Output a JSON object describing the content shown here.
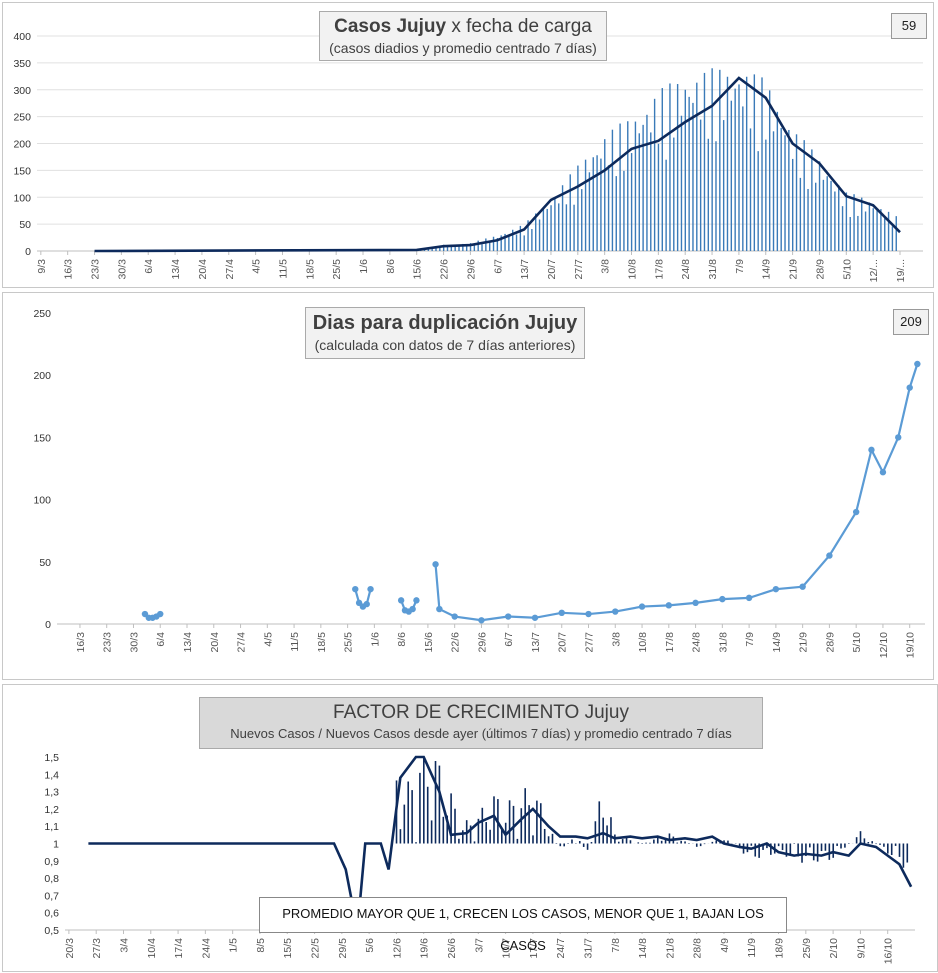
{
  "chart_data": [
    {
      "type": "bar",
      "title": "Casos Jujuy",
      "title_suffix": "x fecha de carga",
      "subtitle": "(casos diadios y promedio  centrado 7 días)",
      "badge": "59",
      "ylim": [
        0,
        400
      ],
      "yticks": [
        "400",
        "350",
        "300",
        "250",
        "200",
        "150",
        "100",
        "50",
        "0"
      ],
      "xtick_labels": [
        "9/3",
        "16/3",
        "23/3",
        "30/3",
        "6/4",
        "13/4",
        "20/4",
        "27/4",
        "4/5",
        "11/5",
        "18/5",
        "25/5",
        "1/6",
        "8/6",
        "15/6",
        "22/6",
        "29/6",
        "6/7",
        "13/7",
        "20/7",
        "27/7",
        "3/8",
        "10/8",
        "17/8",
        "24/8",
        "31/8",
        "7/9",
        "14/9",
        "21/9",
        "28/9",
        "5/10",
        "12/...",
        "19/..."
      ],
      "colors": {
        "bars": "#3a7ab8",
        "line": "#0d2a5c"
      },
      "series": [
        {
          "kind": "bar",
          "x": [
            "15/6",
            "22/6",
            "29/6",
            "6/7",
            "13/7",
            "20/7",
            "27/7",
            "3/8",
            "10/8",
            "17/8",
            "24/8",
            "31/8",
            "7/9",
            "14/9",
            "21/9",
            "28/9",
            "5/10",
            "12/10",
            "19/10"
          ],
          "values": [
            2,
            12,
            15,
            30,
            50,
            100,
            160,
            220,
            250,
            300,
            330,
            340,
            345,
            320,
            230,
            175,
            110,
            95,
            60
          ]
        },
        {
          "kind": "line",
          "x": [
            "15/6",
            "22/6",
            "29/6",
            "6/7",
            "13/7",
            "20/7",
            "27/7",
            "3/8",
            "10/8",
            "17/8",
            "24/8",
            "31/8",
            "7/9",
            "14/9",
            "21/9",
            "28/9",
            "5/10",
            "12/10",
            "19/10"
          ],
          "values": [
            2,
            9,
            11,
            20,
            40,
            95,
            120,
            150,
            190,
            205,
            240,
            270,
            322,
            285,
            200,
            163,
            102,
            85,
            35
          ]
        }
      ]
    },
    {
      "type": "line",
      "title": "Dias para duplicación Jujuy",
      "subtitle": "(calculada con datos de 7 días anteriores)",
      "badge": "209",
      "ylim": [
        0,
        250
      ],
      "yticks": [
        "250",
        "200",
        "150",
        "100",
        "50",
        "0"
      ],
      "xtick_labels": [
        "16/3",
        "23/3",
        "30/3",
        "6/4",
        "13/4",
        "20/4",
        "27/4",
        "4/5",
        "11/5",
        "18/5",
        "25/5",
        "1/6",
        "8/6",
        "15/6",
        "22/6",
        "29/6",
        "6/7",
        "13/7",
        "20/7",
        "27/7",
        "3/8",
        "10/8",
        "17/8",
        "24/8",
        "31/8",
        "7/9",
        "14/9",
        "21/9",
        "28/9",
        "5/10",
        "12/10",
        "19/10"
      ],
      "colors": {
        "line": "#5b9bd5"
      },
      "series": [
        {
          "x": [
            "2/4",
            "3/4",
            "4/4",
            "5/4",
            "6/4"
          ],
          "values": [
            8,
            5,
            5,
            6,
            8
          ]
        },
        {
          "x": [
            "27/5",
            "28/5",
            "29/5",
            "30/5",
            "31/5"
          ],
          "values": [
            28,
            17,
            14,
            16,
            28
          ]
        },
        {
          "x": [
            "8/6",
            "9/6",
            "10/6",
            "11/6",
            "12/6"
          ],
          "values": [
            19,
            11,
            10,
            12,
            19
          ]
        },
        {
          "x": [
            "17/6",
            "18/6",
            "22/6",
            "29/6",
            "6/7",
            "13/7",
            "20/7",
            "27/7",
            "3/8",
            "10/8",
            "17/8",
            "24/8",
            "31/8",
            "7/9",
            "14/9",
            "21/9",
            "28/9",
            "5/10",
            "9/10",
            "12/10",
            "16/10",
            "19/10",
            "21/10"
          ],
          "values": [
            48,
            12,
            6,
            3,
            6,
            5,
            9,
            8,
            10,
            14,
            15,
            17,
            20,
            21,
            28,
            30,
            55,
            90,
            140,
            122,
            150,
            190,
            209
          ]
        }
      ]
    },
    {
      "type": "bar",
      "title": "FACTOR DE CRECIMIENTO Jujuy",
      "subtitle": "Nuevos Casos  / Nuevos Casos desde ayer (últimos 7 días) y promedio  centrado 7 días",
      "note": "PROMEDIO MAYOR QUE 1, CRECEN LOS CASOS, MENOR QUE 1, BAJAN LOS CASOS",
      "ylim": [
        0.5,
        1.5
      ],
      "baseline": 1,
      "yticks": [
        "1,5",
        "1,4",
        "1,3",
        "1,2",
        "1,1",
        "1",
        "0,9",
        "0,8",
        "0,7",
        "0,6",
        "0,5"
      ],
      "xtick_labels": [
        "20/3",
        "27/3",
        "3/4",
        "10/4",
        "17/4",
        "24/4",
        "1/5",
        "8/5",
        "15/5",
        "22/5",
        "29/5",
        "5/6",
        "12/6",
        "19/6",
        "26/6",
        "3/7",
        "10/7",
        "17/7",
        "24/7",
        "31/7",
        "7/8",
        "14/8",
        "21/8",
        "28/8",
        "4/9",
        "11/9",
        "18/9",
        "25/9",
        "2/10",
        "9/10",
        "16/10"
      ],
      "colors": {
        "bars": "#0d2a5c",
        "line": "#0d2a5c"
      },
      "series": [
        {
          "kind": "line",
          "x": [
            "25/3",
            "5/4",
            "24/5",
            "27/5",
            "30/5",
            "2/6",
            "4/6",
            "8/6",
            "10/6",
            "13/6",
            "17/6",
            "19/6",
            "23/6",
            "26/6",
            "30/6",
            "3/7",
            "7/7",
            "10/7",
            "14/7",
            "17/7",
            "21/7",
            "24/7",
            "28/7",
            "31/7",
            "4/8",
            "7/8",
            "11/8",
            "14/8",
            "18/8",
            "21/8",
            "25/8",
            "28/8",
            "1/9",
            "4/9",
            "8/9",
            "11/9",
            "15/9",
            "18/9",
            "22/9",
            "25/9",
            "29/9",
            "2/10",
            "6/10",
            "9/10",
            "13/10",
            "16/10",
            "19/10",
            "22/10"
          ],
          "values": [
            1.0,
            1.0,
            1.0,
            1.0,
            0.85,
            0.5,
            1.0,
            1.0,
            0.85,
            1.38,
            1.5,
            1.5,
            1.3,
            1.05,
            1.06,
            1.12,
            1.16,
            1.05,
            1.14,
            1.2,
            1.1,
            1.04,
            1.04,
            1.03,
            1.06,
            1.03,
            1.04,
            1.03,
            1.04,
            1.02,
            1.03,
            1.02,
            1.04,
            1.0,
            0.98,
            0.97,
            1.0,
            0.95,
            0.93,
            0.94,
            0.93,
            0.95,
            0.93,
            1.0,
            0.98,
            0.93,
            0.88,
            0.75
          ]
        },
        {
          "kind": "bar",
          "x": [
            "12/6",
            "15/6",
            "19/6",
            "22/6",
            "26/6",
            "29/6",
            "3/7",
            "7/7",
            "10/7",
            "14/7",
            "17/7",
            "21/7",
            "24/7",
            "28/7",
            "31/7",
            "4/8",
            "7/8",
            "14/8",
            "21/8",
            "28/8",
            "4/9",
            "11/9",
            "18/9",
            "25/9",
            "2/10",
            "9/10",
            "16/10",
            "22/10"
          ],
          "values": [
            1.35,
            1.3,
            1.5,
            1.45,
            1.25,
            1.1,
            1.15,
            1.25,
            1.2,
            1.25,
            1.3,
            1.1,
            0.95,
            1.05,
            0.95,
            1.3,
            1.05,
            1.0,
            1.05,
            0.98,
            1.03,
            0.92,
            0.95,
            0.9,
            0.92,
            1.06,
            0.95,
            0.85
          ]
        }
      ]
    }
  ]
}
